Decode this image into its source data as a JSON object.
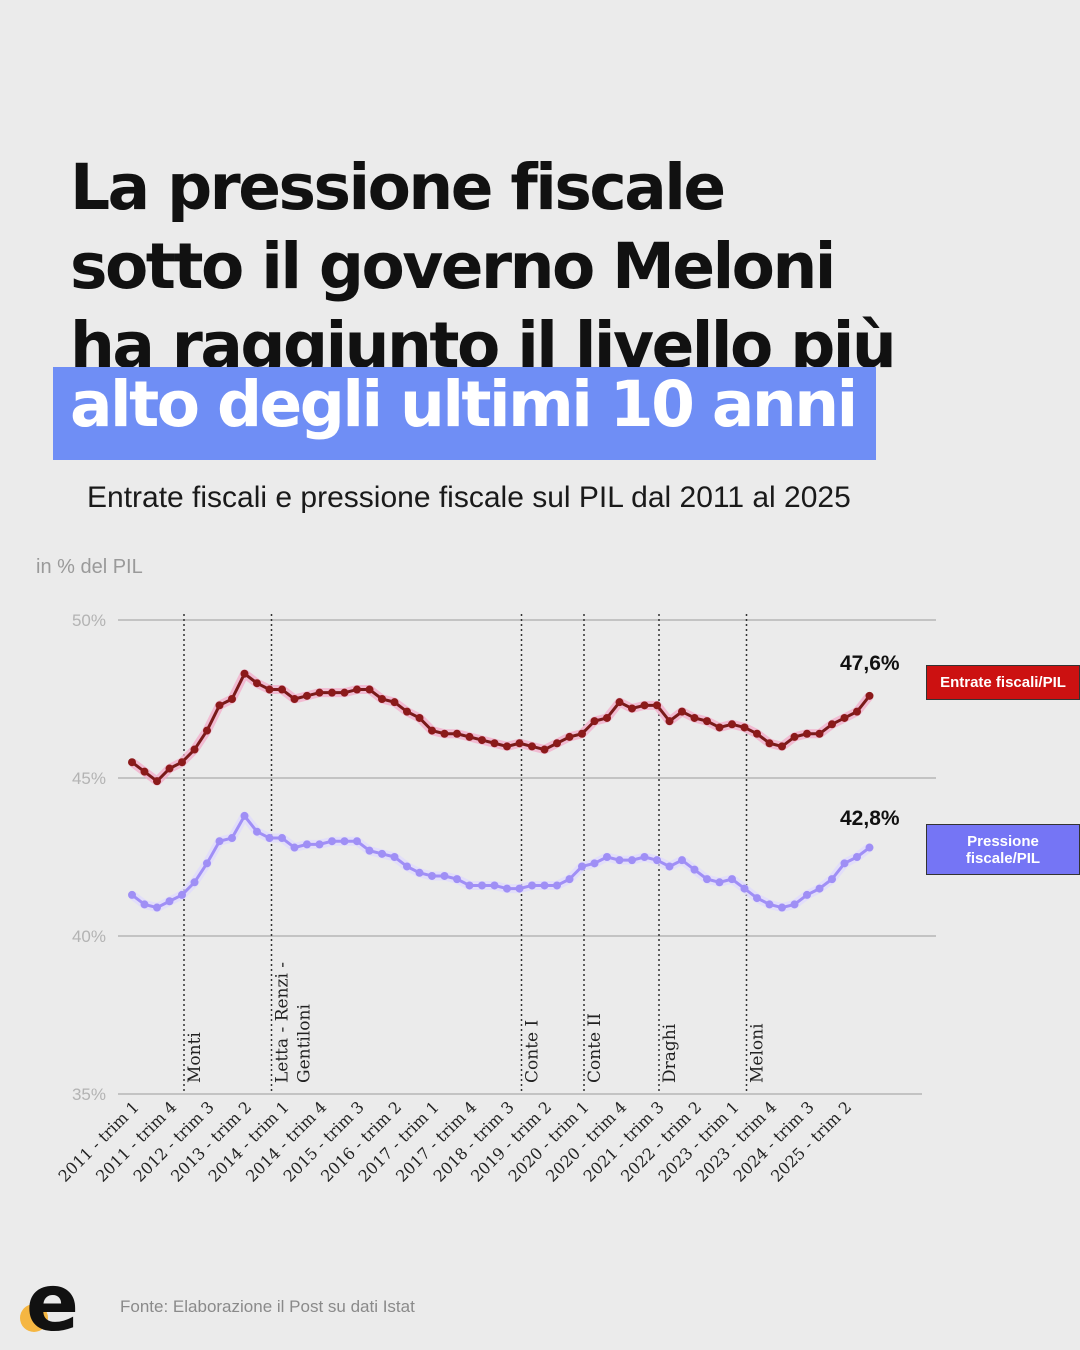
{
  "headline": {
    "line1": "La pressione fiscale",
    "line2": "sotto il governo Meloni",
    "line3": "ha raggiunto il livello più",
    "highlight": "alto degli ultimi 10 anni"
  },
  "subtitle": "Entrate fiscali e pressione fiscale sul PIL dal 2011 al 2025",
  "source": "Fonte: Elaborazione il Post su dati Istat",
  "logo": {
    "icon": "e-logo-icon",
    "dot_color": "#f5b642",
    "letter_color": "#111111"
  },
  "colors": {
    "accent": "#6f8ef5",
    "entrate": "#8b1a1a",
    "pressione": "#9f8ff5"
  },
  "chart_data": {
    "type": "line",
    "ylabel": "in % del PIL",
    "ylim": [
      35,
      50
    ],
    "yticks": [
      "50%",
      "45%",
      "40%",
      "35%"
    ],
    "grid": true,
    "x_tick_labels": [
      "2011 - trim 1",
      "2011 - trim 4",
      "2012 - trim 3",
      "2013 - trim 2",
      "2014 - trim 1",
      "2014 - trim 4",
      "2015 - trim 3",
      "2016 - trim 2",
      "2017 - trim 1",
      "2017 - trim 4",
      "2018 - trim 3",
      "2019 - trim 2",
      "2020 - trim 1",
      "2020 - trim 4",
      "2021 - trim 3",
      "2022 - trim 2",
      "2023 - trim 1",
      "2023 - trim 4",
      "2024 - trim 3",
      "2025 - trim 2"
    ],
    "x_range": [
      "2011 - trim 1",
      "2025 - trim 2"
    ],
    "series": [
      {
        "name": "Entrate fiscali/PIL",
        "end_label": "47,6%",
        "values": [
          45.5,
          45.2,
          44.9,
          45.3,
          45.5,
          45.9,
          46.5,
          47.3,
          47.5,
          48.3,
          48.0,
          47.8,
          47.8,
          47.5,
          47.6,
          47.7,
          47.7,
          47.7,
          47.8,
          47.8,
          47.5,
          47.4,
          47.1,
          46.9,
          46.5,
          46.4,
          46.4,
          46.3,
          46.2,
          46.1,
          46.0,
          46.1,
          46.0,
          45.9,
          46.1,
          46.3,
          46.4,
          46.8,
          46.9,
          47.4,
          47.2,
          47.3,
          47.3,
          46.8,
          47.1,
          46.9,
          46.8,
          46.6,
          46.7,
          46.6,
          46.4,
          46.1,
          46.0,
          46.3,
          46.4,
          46.4,
          46.7,
          46.9,
          47.1,
          47.6
        ]
      },
      {
        "name": "Pressione fiscale/PIL",
        "end_label": "42,8%",
        "values": [
          41.3,
          41.0,
          40.9,
          41.1,
          41.3,
          41.7,
          42.3,
          43.0,
          43.1,
          43.8,
          43.3,
          43.1,
          43.1,
          42.8,
          42.9,
          42.9,
          43.0,
          43.0,
          43.0,
          42.7,
          42.6,
          42.5,
          42.2,
          42.0,
          41.9,
          41.9,
          41.8,
          41.6,
          41.6,
          41.6,
          41.5,
          41.5,
          41.6,
          41.6,
          41.6,
          41.8,
          42.2,
          42.3,
          42.5,
          42.4,
          42.4,
          42.5,
          42.4,
          42.2,
          42.4,
          42.1,
          41.8,
          41.7,
          41.8,
          41.5,
          41.2,
          41.0,
          40.9,
          41.0,
          41.3,
          41.5,
          41.8,
          42.3,
          42.5,
          42.8
        ]
      }
    ],
    "periods": [
      {
        "label": "Monti",
        "start_index": 2
      },
      {
        "label": "Letta - Renzi -",
        "label2": "Gentiloni",
        "start_index": 9
      },
      {
        "label": "Conte I",
        "start_index": 29
      },
      {
        "label": "Conte II",
        "start_index": 34
      },
      {
        "label": "Draghi",
        "start_index": 40
      },
      {
        "label": "Meloni",
        "start_index": 47
      }
    ]
  }
}
